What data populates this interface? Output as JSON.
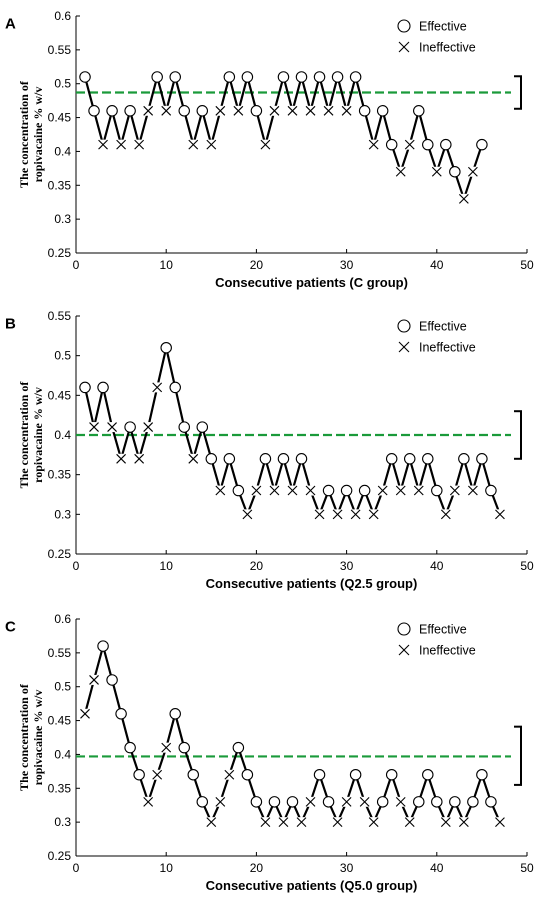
{
  "colors": {
    "line": "#000000",
    "reference": "#1a9a3a",
    "marker_fill": "#ffffff"
  },
  "legend": {
    "effective": "Effective",
    "ineffective": "Ineffective"
  },
  "chart_data": [
    {
      "panel": "A",
      "type": "line",
      "xlabel": "Consecutive patients (C group)",
      "ylabel": [
        "The concentration of",
        "ropivacaine % w/v"
      ],
      "xlim": [
        0,
        50
      ],
      "ylim": [
        0.25,
        0.6
      ],
      "xticks": [
        0,
        10,
        20,
        30,
        40,
        50
      ],
      "yticks": [
        "0.25",
        "0.3",
        "0.35",
        "0.4",
        "0.45",
        "0.5",
        "0.55",
        "0.6"
      ],
      "reference_line": 0.487,
      "error_bar": [
        0.463,
        0.511
      ],
      "series": [
        {
          "x": [
            1,
            2,
            3,
            4,
            5,
            6,
            7,
            8,
            9,
            10,
            11,
            12,
            13,
            14,
            15,
            16,
            17,
            18,
            19,
            20,
            21,
            22,
            23,
            24,
            25,
            26,
            27,
            28,
            29,
            30,
            31,
            32,
            33,
            34,
            35,
            36,
            37,
            38,
            39,
            40,
            41,
            42,
            43,
            44,
            45
          ],
          "y": [
            0.51,
            0.46,
            0.41,
            0.46,
            0.41,
            0.46,
            0.41,
            0.46,
            0.51,
            0.46,
            0.51,
            0.46,
            0.41,
            0.46,
            0.41,
            0.46,
            0.51,
            0.46,
            0.51,
            0.46,
            0.41,
            0.46,
            0.51,
            0.46,
            0.51,
            0.46,
            0.51,
            0.46,
            0.51,
            0.46,
            0.51,
            0.46,
            0.41,
            0.46,
            0.41,
            0.37,
            0.41,
            0.46,
            0.41,
            0.37,
            0.41,
            0.37,
            0.33,
            0.37,
            0.41
          ],
          "outcome": [
            "E",
            "E",
            "I",
            "E",
            "I",
            "E",
            "I",
            "I",
            "E",
            "I",
            "E",
            "E",
            "I",
            "E",
            "I",
            "I",
            "E",
            "I",
            "E",
            "E",
            "I",
            "I",
            "E",
            "I",
            "E",
            "I",
            "E",
            "I",
            "E",
            "I",
            "E",
            "E",
            "I",
            "E",
            "E",
            "I",
            "I",
            "E",
            "E",
            "I",
            "E",
            "E",
            "I",
            "I",
            "E"
          ]
        }
      ]
    },
    {
      "panel": "B",
      "type": "line",
      "xlabel": "Consecutive patients (Q2.5 group)",
      "ylabel": [
        "The concentration of",
        "ropivacaine % w/v"
      ],
      "xlim": [
        0,
        50
      ],
      "ylim": [
        0.25,
        0.55
      ],
      "xticks": [
        0,
        10,
        20,
        30,
        40,
        50
      ],
      "yticks": [
        "0.25",
        "0.3",
        "0.35",
        "0.4",
        "0.45",
        "0.5",
        "0.55"
      ],
      "reference_line": 0.4,
      "error_bar": [
        0.37,
        0.43
      ],
      "series": [
        {
          "x": [
            1,
            2,
            3,
            4,
            5,
            6,
            7,
            8,
            9,
            10,
            11,
            12,
            13,
            14,
            15,
            16,
            17,
            18,
            19,
            20,
            21,
            22,
            23,
            24,
            25,
            26,
            27,
            28,
            29,
            30,
            31,
            32,
            33,
            34,
            35,
            36,
            37,
            38,
            39,
            40,
            41,
            42,
            43,
            44,
            45,
            46,
            47
          ],
          "y": [
            0.46,
            0.41,
            0.46,
            0.41,
            0.37,
            0.41,
            0.37,
            0.41,
            0.46,
            0.51,
            0.46,
            0.41,
            0.37,
            0.41,
            0.37,
            0.33,
            0.37,
            0.33,
            0.3,
            0.33,
            0.37,
            0.33,
            0.37,
            0.33,
            0.37,
            0.33,
            0.3,
            0.33,
            0.3,
            0.33,
            0.3,
            0.33,
            0.3,
            0.33,
            0.37,
            0.33,
            0.37,
            0.33,
            0.37,
            0.33,
            0.3,
            0.33,
            0.37,
            0.33,
            0.37,
            0.33,
            0.3
          ],
          "outcome": [
            "E",
            "I",
            "E",
            "I",
            "I",
            "E",
            "I",
            "I",
            "I",
            "E",
            "E",
            "E",
            "I",
            "E",
            "E",
            "I",
            "E",
            "E",
            "I",
            "I",
            "E",
            "I",
            "E",
            "I",
            "E",
            "I",
            "I",
            "E",
            "I",
            "E",
            "I",
            "E",
            "I",
            "I",
            "E",
            "I",
            "E",
            "I",
            "E",
            "E",
            "I",
            "I",
            "E",
            "I",
            "E",
            "E",
            "I"
          ]
        }
      ]
    },
    {
      "panel": "C",
      "type": "line",
      "xlabel": "Consecutive patients (Q5.0 group)",
      "ylabel": [
        "The concentration of",
        "ropivacaine % w/v"
      ],
      "xlim": [
        0,
        50
      ],
      "ylim": [
        0.25,
        0.6
      ],
      "xticks": [
        0,
        10,
        20,
        30,
        40,
        50
      ],
      "yticks": [
        "0.25",
        "0.3",
        "0.35",
        "0.4",
        "0.45",
        "0.5",
        "0.55",
        "0.6"
      ],
      "reference_line": 0.397,
      "error_bar": [
        0.355,
        0.441
      ],
      "series": [
        {
          "x": [
            1,
            2,
            3,
            4,
            5,
            6,
            7,
            8,
            9,
            10,
            11,
            12,
            13,
            14,
            15,
            16,
            17,
            18,
            19,
            20,
            21,
            22,
            23,
            24,
            25,
            26,
            27,
            28,
            29,
            30,
            31,
            32,
            33,
            34,
            35,
            36,
            37,
            38,
            39,
            40,
            41,
            42,
            43,
            44,
            45,
            46,
            47
          ],
          "y": [
            0.46,
            0.51,
            0.56,
            0.51,
            0.46,
            0.41,
            0.37,
            0.33,
            0.37,
            0.41,
            0.46,
            0.41,
            0.37,
            0.33,
            0.3,
            0.33,
            0.37,
            0.41,
            0.37,
            0.33,
            0.3,
            0.33,
            0.3,
            0.33,
            0.3,
            0.33,
            0.37,
            0.33,
            0.3,
            0.33,
            0.37,
            0.33,
            0.3,
            0.33,
            0.37,
            0.33,
            0.3,
            0.33,
            0.37,
            0.33,
            0.3,
            0.33,
            0.3,
            0.33,
            0.37,
            0.33,
            0.3
          ],
          "outcome": [
            "I",
            "I",
            "E",
            "E",
            "E",
            "E",
            "E",
            "I",
            "I",
            "I",
            "E",
            "E",
            "E",
            "E",
            "I",
            "I",
            "I",
            "E",
            "E",
            "E",
            "I",
            "E",
            "I",
            "E",
            "I",
            "I",
            "E",
            "E",
            "I",
            "I",
            "E",
            "I",
            "I",
            "E",
            "E",
            "I",
            "I",
            "E",
            "E",
            "E",
            "I",
            "E",
            "I",
            "E",
            "E",
            "E",
            "I"
          ]
        }
      ]
    }
  ]
}
